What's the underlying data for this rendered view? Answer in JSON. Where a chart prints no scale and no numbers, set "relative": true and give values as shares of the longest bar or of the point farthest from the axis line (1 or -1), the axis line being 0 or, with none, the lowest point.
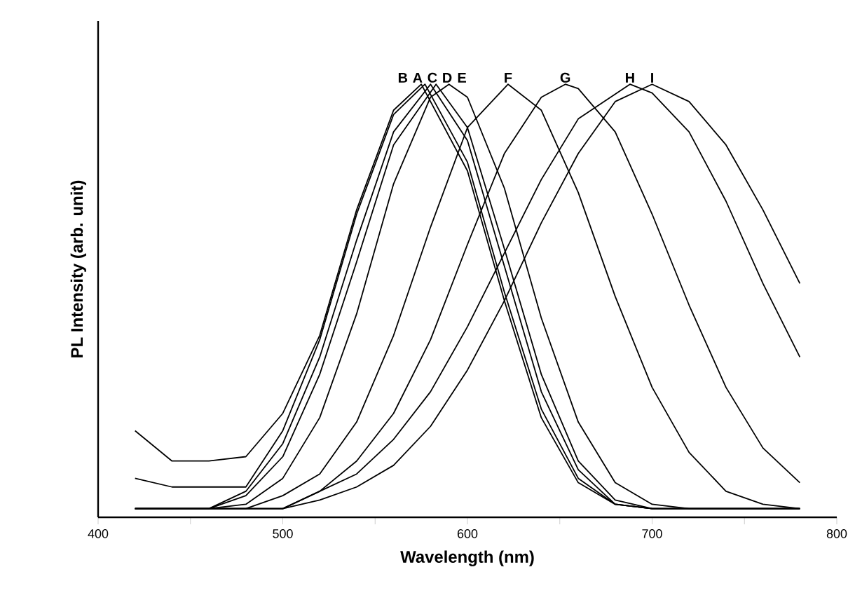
{
  "chart_data": {
    "type": "line",
    "relative": true,
    "xlabel": "Wavelength (nm)",
    "ylabel": "PL Intensity (arb. unit)",
    "xlim": [
      400,
      800
    ],
    "xticks": [
      400,
      {
        "value": 450,
        "label": null
      },
      500,
      {
        "value": 550,
        "label": null
      },
      600,
      {
        "value": 650,
        "label": null
      },
      700,
      {
        "value": 750,
        "label": null
      },
      800
    ],
    "legend": false,
    "marker": "none",
    "line_style": "solid",
    "series": [
      {
        "name": "B",
        "color": "#000000",
        "x": [
          420,
          440,
          460,
          480,
          500,
          520,
          540,
          560,
          575,
          600,
          620,
          640,
          660,
          680,
          700,
          720,
          740,
          760,
          780
        ],
        "values": [
          0.2,
          0.13,
          0.13,
          0.14,
          0.24,
          0.42,
          0.71,
          0.94,
          1.0,
          0.8,
          0.5,
          0.23,
          0.08,
          0.03,
          0.02,
          0.02,
          0.02,
          0.02,
          0.02
        ]
      },
      {
        "name": "A",
        "color": "#000000",
        "x": [
          420,
          440,
          460,
          480,
          500,
          520,
          540,
          560,
          577,
          600,
          620,
          640,
          660,
          680,
          700,
          720,
          740,
          760,
          780
        ],
        "values": [
          0.09,
          0.07,
          0.07,
          0.07,
          0.2,
          0.41,
          0.7,
          0.93,
          1.0,
          0.82,
          0.52,
          0.25,
          0.09,
          0.03,
          0.02,
          0.02,
          0.02,
          0.02,
          0.02
        ]
      },
      {
        "name": "C",
        "color": "#000000",
        "x": [
          420,
          440,
          460,
          480,
          500,
          520,
          540,
          560,
          580,
          600,
          620,
          640,
          660,
          680,
          700,
          720,
          740,
          760,
          780
        ],
        "values": [
          0.02,
          0.02,
          0.02,
          0.06,
          0.17,
          0.37,
          0.64,
          0.89,
          1.0,
          0.87,
          0.58,
          0.29,
          0.11,
          0.03,
          0.02,
          0.02,
          0.02,
          0.02,
          0.02
        ]
      },
      {
        "name": "D",
        "color": "#000000",
        "x": [
          420,
          440,
          460,
          480,
          500,
          520,
          540,
          560,
          583,
          600,
          620,
          640,
          660,
          680,
          700,
          720,
          740,
          760,
          780
        ],
        "values": [
          0.02,
          0.02,
          0.02,
          0.05,
          0.14,
          0.33,
          0.59,
          0.86,
          1.0,
          0.9,
          0.62,
          0.33,
          0.13,
          0.04,
          0.02,
          0.02,
          0.02,
          0.02,
          0.02
        ]
      },
      {
        "name": "E",
        "color": "#000000",
        "x": [
          420,
          440,
          460,
          480,
          500,
          520,
          540,
          560,
          580,
          590,
          600,
          620,
          640,
          660,
          680,
          700,
          720,
          740,
          760,
          780
        ],
        "values": [
          0.02,
          0.02,
          0.02,
          0.03,
          0.09,
          0.23,
          0.47,
          0.77,
          0.97,
          1.0,
          0.97,
          0.76,
          0.46,
          0.22,
          0.08,
          0.03,
          0.02,
          0.02,
          0.02,
          0.02
        ]
      },
      {
        "name": "F",
        "color": "#000000",
        "x": [
          420,
          440,
          460,
          480,
          500,
          520,
          540,
          560,
          580,
          600,
          622,
          640,
          660,
          680,
          700,
          720,
          740,
          760,
          780
        ],
        "values": [
          0.02,
          0.02,
          0.02,
          0.02,
          0.05,
          0.1,
          0.22,
          0.42,
          0.67,
          0.9,
          1.0,
          0.94,
          0.75,
          0.51,
          0.3,
          0.15,
          0.06,
          0.03,
          0.02
        ]
      },
      {
        "name": "G",
        "color": "#000000",
        "x": [
          420,
          440,
          460,
          480,
          500,
          520,
          540,
          560,
          580,
          600,
          620,
          640,
          653,
          660,
          680,
          700,
          720,
          740,
          760,
          780
        ],
        "values": [
          0.02,
          0.02,
          0.02,
          0.02,
          0.02,
          0.06,
          0.13,
          0.24,
          0.41,
          0.63,
          0.84,
          0.97,
          1.0,
          0.99,
          0.89,
          0.7,
          0.49,
          0.3,
          0.16,
          0.08
        ]
      },
      {
        "name": "H",
        "color": "#000000",
        "x": [
          420,
          440,
          460,
          480,
          500,
          520,
          540,
          560,
          580,
          600,
          620,
          640,
          660,
          688,
          700,
          720,
          740,
          760,
          780
        ],
        "values": [
          0.02,
          0.02,
          0.02,
          0.02,
          0.02,
          0.06,
          0.1,
          0.18,
          0.29,
          0.44,
          0.61,
          0.78,
          0.92,
          1.0,
          0.98,
          0.89,
          0.73,
          0.54,
          0.37
        ]
      },
      {
        "name": "I",
        "color": "#000000",
        "x": [
          420,
          440,
          460,
          480,
          500,
          520,
          540,
          560,
          580,
          600,
          620,
          640,
          660,
          680,
          700,
          720,
          740,
          760,
          780
        ],
        "values": [
          0.02,
          0.02,
          0.02,
          0.02,
          0.02,
          0.04,
          0.07,
          0.12,
          0.21,
          0.34,
          0.5,
          0.68,
          0.84,
          0.96,
          1.0,
          0.96,
          0.86,
          0.71,
          0.54
        ]
      }
    ]
  }
}
